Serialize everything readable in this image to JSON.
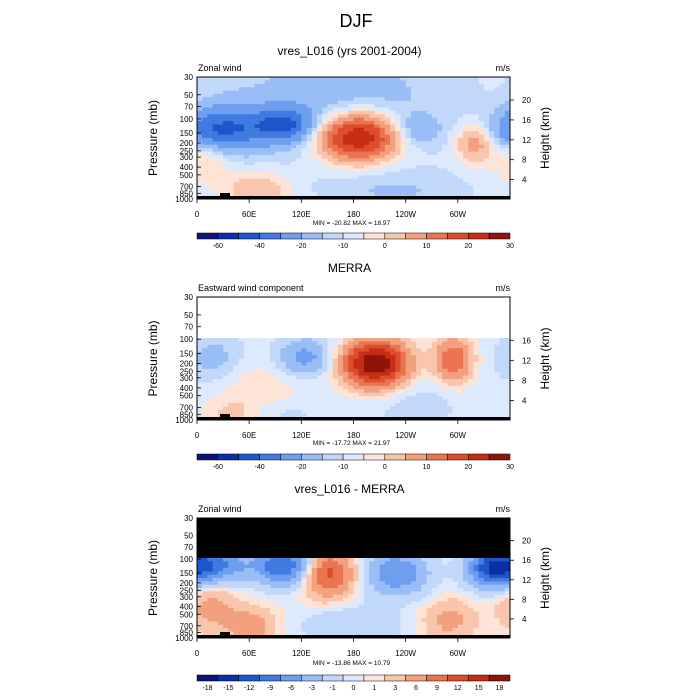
{
  "figure": {
    "title": "DJF"
  },
  "chart_data": [
    {
      "type": "heatmap",
      "title": "vres_L016 (yrs 2001-2004)",
      "left_label": "Zonal wind",
      "units": "m/s",
      "ylabel": "Pressure (mb)",
      "ylabel_right": "Height (km)",
      "yticks": [
        "30",
        "50",
        "70",
        "100",
        "150",
        "200",
        "250",
        "300",
        "400",
        "500",
        "700",
        "850",
        "1000"
      ],
      "yticks_right": [
        "20",
        "16",
        "12",
        "8",
        "4"
      ],
      "x": [
        "0",
        "60E",
        "120E",
        "180",
        "120W",
        "60W"
      ],
      "stats": "MIN = -20.82  MAX = 18.97",
      "colorbar_labels": [
        "-60",
        "-40",
        "-20",
        "-10",
        "0",
        "10",
        "20",
        "30"
      ],
      "data_top_mb": 30,
      "features": [
        {
          "lon": 185,
          "p": 170,
          "value": 18.97,
          "sx": 30,
          "sp": 0.45
        },
        {
          "lon": 100,
          "p": 120,
          "value": -9,
          "sx": 25,
          "sp": 0.35
        },
        {
          "lon": 15,
          "p": 140,
          "value": -6,
          "sx": 30,
          "sp": 0.4
        },
        {
          "lon": 40,
          "p": 130,
          "value": -5,
          "sx": 30,
          "sp": 0.5
        },
        {
          "lon": 320,
          "p": 200,
          "value": 6,
          "sx": 15,
          "sp": 0.4
        },
        {
          "lon": 70,
          "p": 750,
          "value": 4,
          "sx": 25,
          "sp": 0.35
        },
        {
          "lon": 10,
          "p": 300,
          "value": 3,
          "sx": 20,
          "sp": 0.5
        },
        {
          "lon": 160,
          "p": 60,
          "value": -3,
          "sx": 100,
          "sp": 1.2
        },
        {
          "lon": 250,
          "p": 140,
          "value": -3,
          "sx": 20,
          "sp": 0.3
        },
        {
          "lon": 230,
          "p": 800,
          "value": -2,
          "sx": 60,
          "sp": 0.4
        }
      ]
    },
    {
      "type": "heatmap",
      "title": "MERRA",
      "left_label": "Eastward wind component",
      "units": "m/s",
      "ylabel": "Pressure (mb)",
      "ylabel_right": "Height (km)",
      "yticks": [
        "30",
        "50",
        "70",
        "100",
        "150",
        "200",
        "250",
        "300",
        "400",
        "500",
        "700",
        "850",
        "1000"
      ],
      "yticks_right": [
        "16",
        "12",
        "8",
        "4"
      ],
      "x": [
        "0",
        "60E",
        "120E",
        "180",
        "120W",
        "60W"
      ],
      "stats": "MIN = -17.72  MAX = 21.97",
      "colorbar_labels": [
        "-60",
        "-40",
        "-20",
        "-10",
        "0",
        "10",
        "20",
        "30"
      ],
      "data_top_mb": 100,
      "features": [
        {
          "lon": 205,
          "p": 200,
          "value": 21.97,
          "sx": 25,
          "sp": 0.45
        },
        {
          "lon": 295,
          "p": 180,
          "value": 10,
          "sx": 15,
          "sp": 0.45
        },
        {
          "lon": 125,
          "p": 170,
          "value": -5,
          "sx": 25,
          "sp": 0.4
        },
        {
          "lon": 20,
          "p": 180,
          "value": -3,
          "sx": 25,
          "sp": 0.5
        },
        {
          "lon": 70,
          "p": 400,
          "value": 2,
          "sx": 40,
          "sp": 0.6
        },
        {
          "lon": 40,
          "p": 850,
          "value": 2,
          "sx": 20,
          "sp": 0.3
        },
        {
          "lon": 250,
          "p": 600,
          "value": -1.5,
          "sx": 40,
          "sp": 0.5
        },
        {
          "lon": 100,
          "p": 800,
          "value": -1.5,
          "sx": 30,
          "sp": 0.3
        }
      ]
    },
    {
      "type": "heatmap",
      "title": "vres_L016 - MERRA",
      "left_label": "Zonal wind",
      "units": "m/s",
      "ylabel": "Pressure (mb)",
      "ylabel_right": "Height (km)",
      "yticks": [
        "30",
        "50",
        "70",
        "100",
        "150",
        "200",
        "250",
        "300",
        "400",
        "500",
        "700",
        "850",
        "1000"
      ],
      "yticks_right": [
        "20",
        "16",
        "12",
        "8",
        "4"
      ],
      "x": [
        "0",
        "60E",
        "120E",
        "180",
        "120W",
        "60W"
      ],
      "stats": "MIN = -13.86  MAX = 10.79",
      "colorbar_labels": [
        "-18",
        "-15",
        "-12",
        "-9",
        "-6",
        "-3",
        "-1",
        "0",
        "1",
        "3",
        "6",
        "9",
        "12",
        "15",
        "18"
      ],
      "data_top_mb": 100,
      "features": [
        {
          "lon": 150,
          "p": 150,
          "value": 10.79,
          "sx": 20,
          "sp": 0.45
        },
        {
          "lon": 100,
          "p": 120,
          "value": -12,
          "sx": 25,
          "sp": 0.4
        },
        {
          "lon": 230,
          "p": 150,
          "value": -9,
          "sx": 25,
          "sp": 0.45
        },
        {
          "lon": 340,
          "p": 130,
          "value": -13.86,
          "sx": 20,
          "sp": 0.4
        },
        {
          "lon": 20,
          "p": 120,
          "value": -10,
          "sx": 25,
          "sp": 0.35
        },
        {
          "lon": 60,
          "p": 700,
          "value": 5,
          "sx": 20,
          "sp": 0.35
        },
        {
          "lon": 15,
          "p": 400,
          "value": 4,
          "sx": 20,
          "sp": 0.45
        },
        {
          "lon": 290,
          "p": 600,
          "value": 4,
          "sx": 20,
          "sp": 0.4
        },
        {
          "lon": 180,
          "p": 700,
          "value": -3,
          "sx": 40,
          "sp": 0.4
        }
      ]
    }
  ]
}
